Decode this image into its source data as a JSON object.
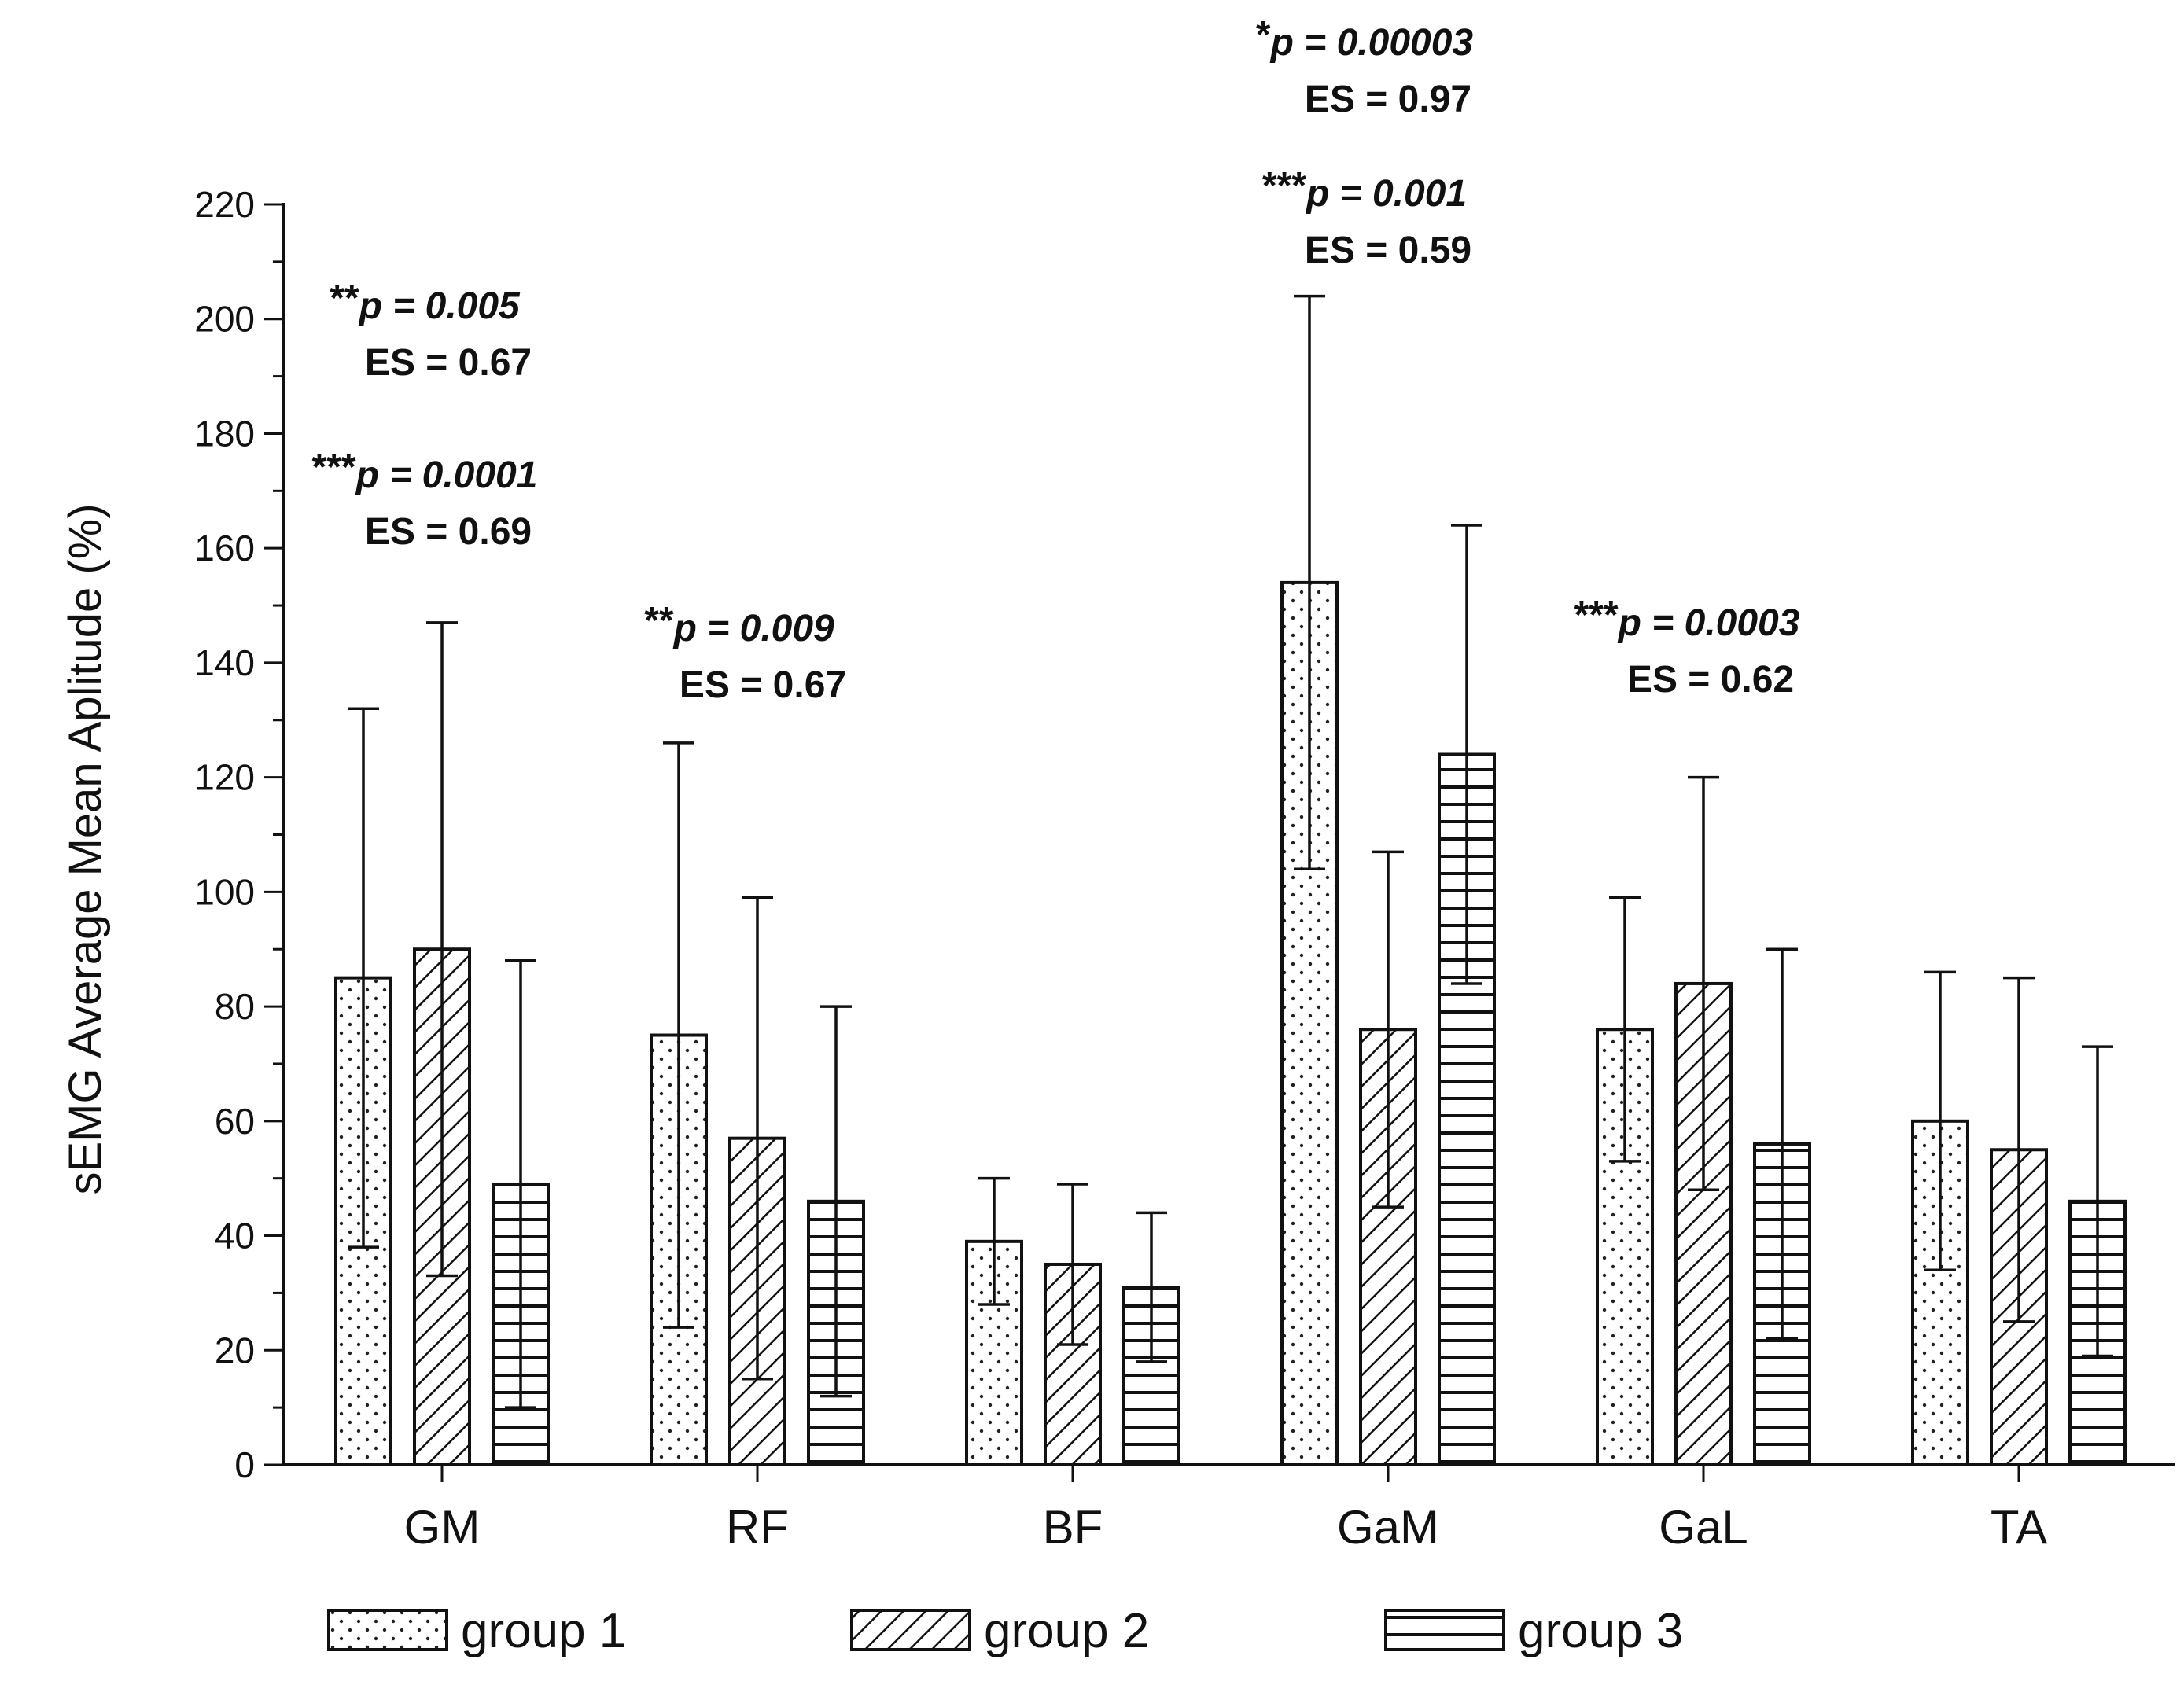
{
  "chart_data": {
    "type": "bar",
    "categories": [
      "GM",
      "RF",
      "BF",
      "GaM",
      "GaL",
      "TA"
    ],
    "series": [
      {
        "name": "group 1",
        "pattern": "dots",
        "values": [
          85,
          75,
          39,
          154,
          76,
          60
        ],
        "errors": [
          47,
          51,
          11,
          50,
          23,
          26
        ]
      },
      {
        "name": "group 2",
        "pattern": "diagonal",
        "values": [
          90,
          57,
          35,
          76,
          84,
          55
        ],
        "errors": [
          57,
          42,
          14,
          31,
          36,
          30
        ]
      },
      {
        "name": "group 3",
        "pattern": "horizontal",
        "values": [
          49,
          46,
          31,
          124,
          56,
          46
        ],
        "errors": [
          39,
          34,
          13,
          40,
          34,
          27
        ]
      }
    ],
    "ylabel": "sEMG Average Mean Aplitude (%)",
    "xlabel": "",
    "ylim": [
      0,
      220
    ],
    "yticks": [
      0,
      20,
      40,
      60,
      80,
      100,
      120,
      140,
      160,
      180,
      200,
      220
    ],
    "grid": false,
    "legend_position": "bottom",
    "annotations": [
      {
        "category": "GM",
        "level": 1,
        "stars": "**",
        "p_label": "p = 0.005",
        "es_label": "ES = 0.67"
      },
      {
        "category": "GM",
        "level": 0,
        "stars": "***",
        "p_label": "p = 0.0001",
        "es_label": "ES = 0.69"
      },
      {
        "category": "RF",
        "level": 0,
        "stars": "**",
        "p_label": "p = 0.009",
        "es_label": "ES = 0.67"
      },
      {
        "category": "GaM",
        "level": 1,
        "stars": "*",
        "p_label": "p = 0.00003",
        "es_label": "ES = 0.97"
      },
      {
        "category": "GaM",
        "level": 0,
        "stars": "***",
        "p_label": "p = 0.001",
        "es_label": "ES = 0.59"
      },
      {
        "category": "GaL",
        "level": 0,
        "stars": "***",
        "p_label": "p = 0.0003",
        "es_label": "ES = 0.62"
      }
    ]
  },
  "colors": {
    "ink": "#111111",
    "fill": "#ffffff"
  }
}
